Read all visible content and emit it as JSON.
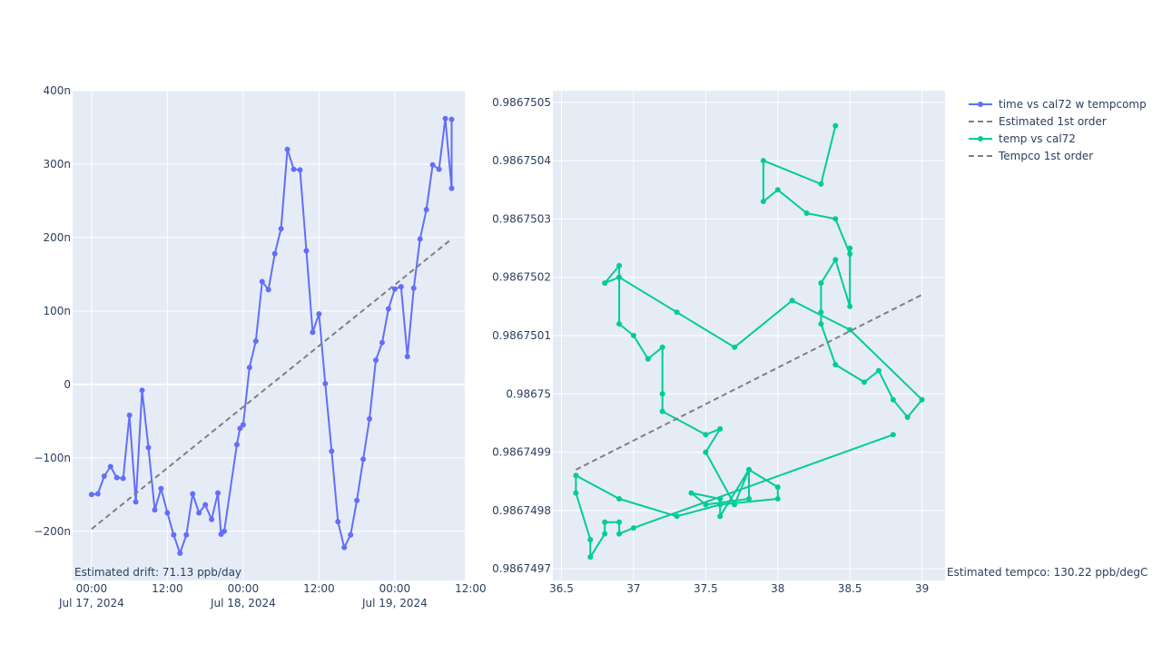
{
  "chart_data": [
    {
      "type": "line",
      "title": "",
      "xlabel": "",
      "ylabel": "",
      "x_range": [
        "2024-07-16T21:00",
        "2024-07-19T11:05"
      ],
      "ylim": [
        -2.67e-07,
        4e-07
      ],
      "x_ticks": [
        {
          "t": "2024-07-17T00:00",
          "line1": "00:00",
          "line2": "Jul 17, 2024"
        },
        {
          "t": "2024-07-17T12:00",
          "line1": "12:00",
          "line2": ""
        },
        {
          "t": "2024-07-18T00:00",
          "line1": "00:00",
          "line2": "Jul 18, 2024"
        },
        {
          "t": "2024-07-18T12:00",
          "line1": "12:00",
          "line2": ""
        },
        {
          "t": "2024-07-19T00:00",
          "line1": "00:00",
          "line2": "Jul 19, 2024"
        },
        {
          "t": "2024-07-19T12:00",
          "line1": "12:00",
          "line2": ""
        }
      ],
      "y_ticks": [
        {
          "v": 4e-07,
          "label": "400n"
        },
        {
          "v": 3e-07,
          "label": "300n"
        },
        {
          "v": 2e-07,
          "label": "200n"
        },
        {
          "v": 1e-07,
          "label": "100n"
        },
        {
          "v": 0,
          "label": "0"
        },
        {
          "v": -1e-07,
          "label": "−100n"
        },
        {
          "v": -2e-07,
          "label": "−200n"
        }
      ],
      "series": [
        {
          "name": "time vs cal72 w tempcomp",
          "color": "#636efa",
          "mode": "lines+markers",
          "x": [
            "2024-07-17T00:00",
            "2024-07-17T01:00",
            "2024-07-17T02:00",
            "2024-07-17T03:00",
            "2024-07-17T04:00",
            "2024-07-17T05:00",
            "2024-07-17T06:00",
            "2024-07-17T07:00",
            "2024-07-17T08:00",
            "2024-07-17T09:00",
            "2024-07-17T10:00",
            "2024-07-17T11:00",
            "2024-07-17T12:00",
            "2024-07-17T13:00",
            "2024-07-17T14:00",
            "2024-07-17T15:00",
            "2024-07-17T16:00",
            "2024-07-17T17:00",
            "2024-07-17T18:00",
            "2024-07-17T19:00",
            "2024-07-17T20:00",
            "2024-07-17T20:30",
            "2024-07-17T21:00",
            "2024-07-17T23:00",
            "2024-07-17T23:30",
            "2024-07-18T00:00",
            "2024-07-18T01:00",
            "2024-07-18T02:00",
            "2024-07-18T03:00",
            "2024-07-18T04:00",
            "2024-07-18T05:00",
            "2024-07-18T06:00",
            "2024-07-18T07:00",
            "2024-07-18T08:00",
            "2024-07-18T09:00",
            "2024-07-18T10:00",
            "2024-07-18T11:00",
            "2024-07-18T12:00",
            "2024-07-18T13:00",
            "2024-07-18T14:00",
            "2024-07-18T15:00",
            "2024-07-18T16:00",
            "2024-07-18T17:00",
            "2024-07-18T18:00",
            "2024-07-18T19:00",
            "2024-07-18T20:00",
            "2024-07-18T21:00",
            "2024-07-18T22:00",
            "2024-07-18T23:00",
            "2024-07-19T00:00",
            "2024-07-19T01:00",
            "2024-07-19T02:00",
            "2024-07-19T03:00",
            "2024-07-19T04:00",
            "2024-07-19T05:00",
            "2024-07-19T06:00",
            "2024-07-19T07:00",
            "2024-07-19T08:00",
            "2024-07-19T09:00"
          ],
          "y": [
            -1.5e-07,
            -1.49e-07,
            -1.25e-07,
            -1.12e-07,
            -1.27e-07,
            -1.28e-07,
            -4.2e-08,
            -1.6e-07,
            -8e-09,
            -8.6e-08,
            -1.71e-07,
            -1.42e-07,
            -1.75e-07,
            -2.05e-07,
            -2.3e-07,
            -2.05e-07,
            -1.49e-07,
            -1.75e-07,
            -1.64e-07,
            -1.84e-07,
            -1.48e-07,
            -2.04e-07,
            -2e-07,
            -8.2e-08,
            -6e-08,
            -5.5e-08,
            2.3e-08,
            5.9e-08,
            1.4e-07,
            1.29e-07,
            1.78e-07,
            2.12e-07,
            3.2e-07,
            2.93e-07,
            2.92e-07,
            1.82e-07,
            7.1e-08,
            9.6e-08,
            1e-09,
            -9.1e-08,
            -1.87e-07,
            -2.22e-07,
            -2.05e-07,
            -1.58e-07,
            -1.02e-07,
            -4.7e-08,
            3.3e-08,
            5.7e-08,
            1.03e-07,
            1.3e-07,
            1.33e-07,
            3.8e-08,
            1.31e-07,
            1.98e-07,
            2.38e-07,
            2.99e-07,
            2.93e-07,
            3.62e-07,
            2.67e-07
          ]
        },
        {
          "name": "Estimated 1st order",
          "color": "#7f7f7f",
          "mode": "lines-dash",
          "x": [
            "2024-07-17T00:00",
            "2024-07-19T09:00"
          ],
          "y": [
            -1.97e-07,
            1.98e-07
          ]
        }
      ],
      "extra_series_tail": {
        "x": "2024-07-19T09:00",
        "y": 3.61e-07
      },
      "annotation": "Estimated drift:  71.13 ppb/day"
    },
    {
      "type": "line",
      "title": "",
      "xlabel": "",
      "ylabel": "",
      "xlim": [
        36.44,
        39.16
      ],
      "ylim": [
        0.98674968,
        0.98675052
      ],
      "x_ticks": [
        {
          "v": 36.5,
          "label": "36.5"
        },
        {
          "v": 37,
          "label": "37"
        },
        {
          "v": 37.5,
          "label": "37.5"
        },
        {
          "v": 38,
          "label": "38"
        },
        {
          "v": 38.5,
          "label": "38.5"
        },
        {
          "v": 39,
          "label": "39"
        }
      ],
      "y_ticks": [
        {
          "v": 0.9867505,
          "label": "0.9867505"
        },
        {
          "v": 0.9867504,
          "label": "0.9867504"
        },
        {
          "v": 0.9867503,
          "label": "0.9867503"
        },
        {
          "v": 0.9867502,
          "label": "0.9867502"
        },
        {
          "v": 0.9867501,
          "label": "0.9867501"
        },
        {
          "v": 0.98675,
          "label": "0.98675"
        },
        {
          "v": 0.9867499,
          "label": "0.9867499"
        },
        {
          "v": 0.9867498,
          "label": "0.9867498"
        },
        {
          "v": 0.9867497,
          "label": "0.9867497"
        }
      ],
      "series": [
        {
          "name": "temp vs cal72",
          "color": "#00cc96",
          "mode": "lines+markers",
          "x": [
            38.4,
            38.3,
            37.9,
            37.9,
            38.0,
            38.2,
            38.4,
            38.5,
            38.5,
            38.5,
            38.4,
            38.3,
            38.3,
            38.3,
            38.4,
            38.6,
            38.7,
            38.8,
            38.9,
            39.0,
            38.5,
            38.1,
            37.7,
            37.3,
            36.9,
            36.9,
            36.8,
            36.9,
            36.9,
            37.0,
            37.1,
            37.2,
            37.2,
            37.2,
            37.5,
            37.6,
            37.5,
            37.7,
            37.8,
            37.8,
            37.5,
            37.4,
            37.6,
            37.6,
            37.8,
            38.0,
            38.0,
            37.6,
            37.3,
            36.9,
            36.6,
            36.6,
            36.7,
            36.7,
            36.8,
            36.8,
            36.9,
            36.9,
            37.0
          ],
          "y": [
            0.98675046,
            0.98675036,
            0.9867504,
            0.98675033,
            0.98675035,
            0.98675031,
            0.9867503,
            0.98675024,
            0.98675025,
            0.98675015,
            0.98675023,
            0.98675019,
            0.98675014,
            0.98675012,
            0.98675005,
            0.98675002,
            0.98675004,
            0.98674999,
            0.98674996,
            0.98674999,
            0.98675011,
            0.98675016,
            0.98675008,
            0.98675014,
            0.9867502,
            0.98675022,
            0.98675019,
            0.9867502,
            0.98675012,
            0.9867501,
            0.98675006,
            0.98675008,
            0.98675,
            0.98674997,
            0.98674993,
            0.98674994,
            0.9867499,
            0.98674981,
            0.98674987,
            0.98674982,
            0.98674981,
            0.98674983,
            0.98674982,
            0.98674979,
            0.98674987,
            0.98674984,
            0.98674982,
            0.98674981,
            0.98674979,
            0.98674982,
            0.98674986,
            0.98674983,
            0.98674975,
            0.98674972,
            0.98674976,
            0.98674978,
            0.98674978,
            0.98674976,
            0.98674977
          ]
        },
        {
          "name": "Tempco 1st order",
          "color": "#7f7f7f",
          "mode": "lines-dash",
          "x": [
            36.6,
            39.0
          ],
          "y": [
            0.98674987,
            0.98675017
          ]
        }
      ],
      "tail_point": {
        "x": 38.8,
        "y": 0.98674993
      },
      "annotation": "Estimated tempco:  130.22 ppb/degC"
    }
  ],
  "legend": {
    "placement": "top-right",
    "items": [
      {
        "label": "time vs cal72 w tempcomp",
        "color": "#636efa",
        "style": "line-marker"
      },
      {
        "label": "Estimated 1st order",
        "color": "#7f7f7f",
        "style": "dash"
      },
      {
        "label": "temp vs cal72",
        "color": "#00cc96",
        "style": "line-marker"
      },
      {
        "label": "Tempco 1st order",
        "color": "#7f7f7f",
        "style": "dash"
      }
    ]
  },
  "colors": {
    "plot_bg": "#e5ecf6",
    "grid": "#ffffff",
    "text": "#2a3f5f"
  }
}
